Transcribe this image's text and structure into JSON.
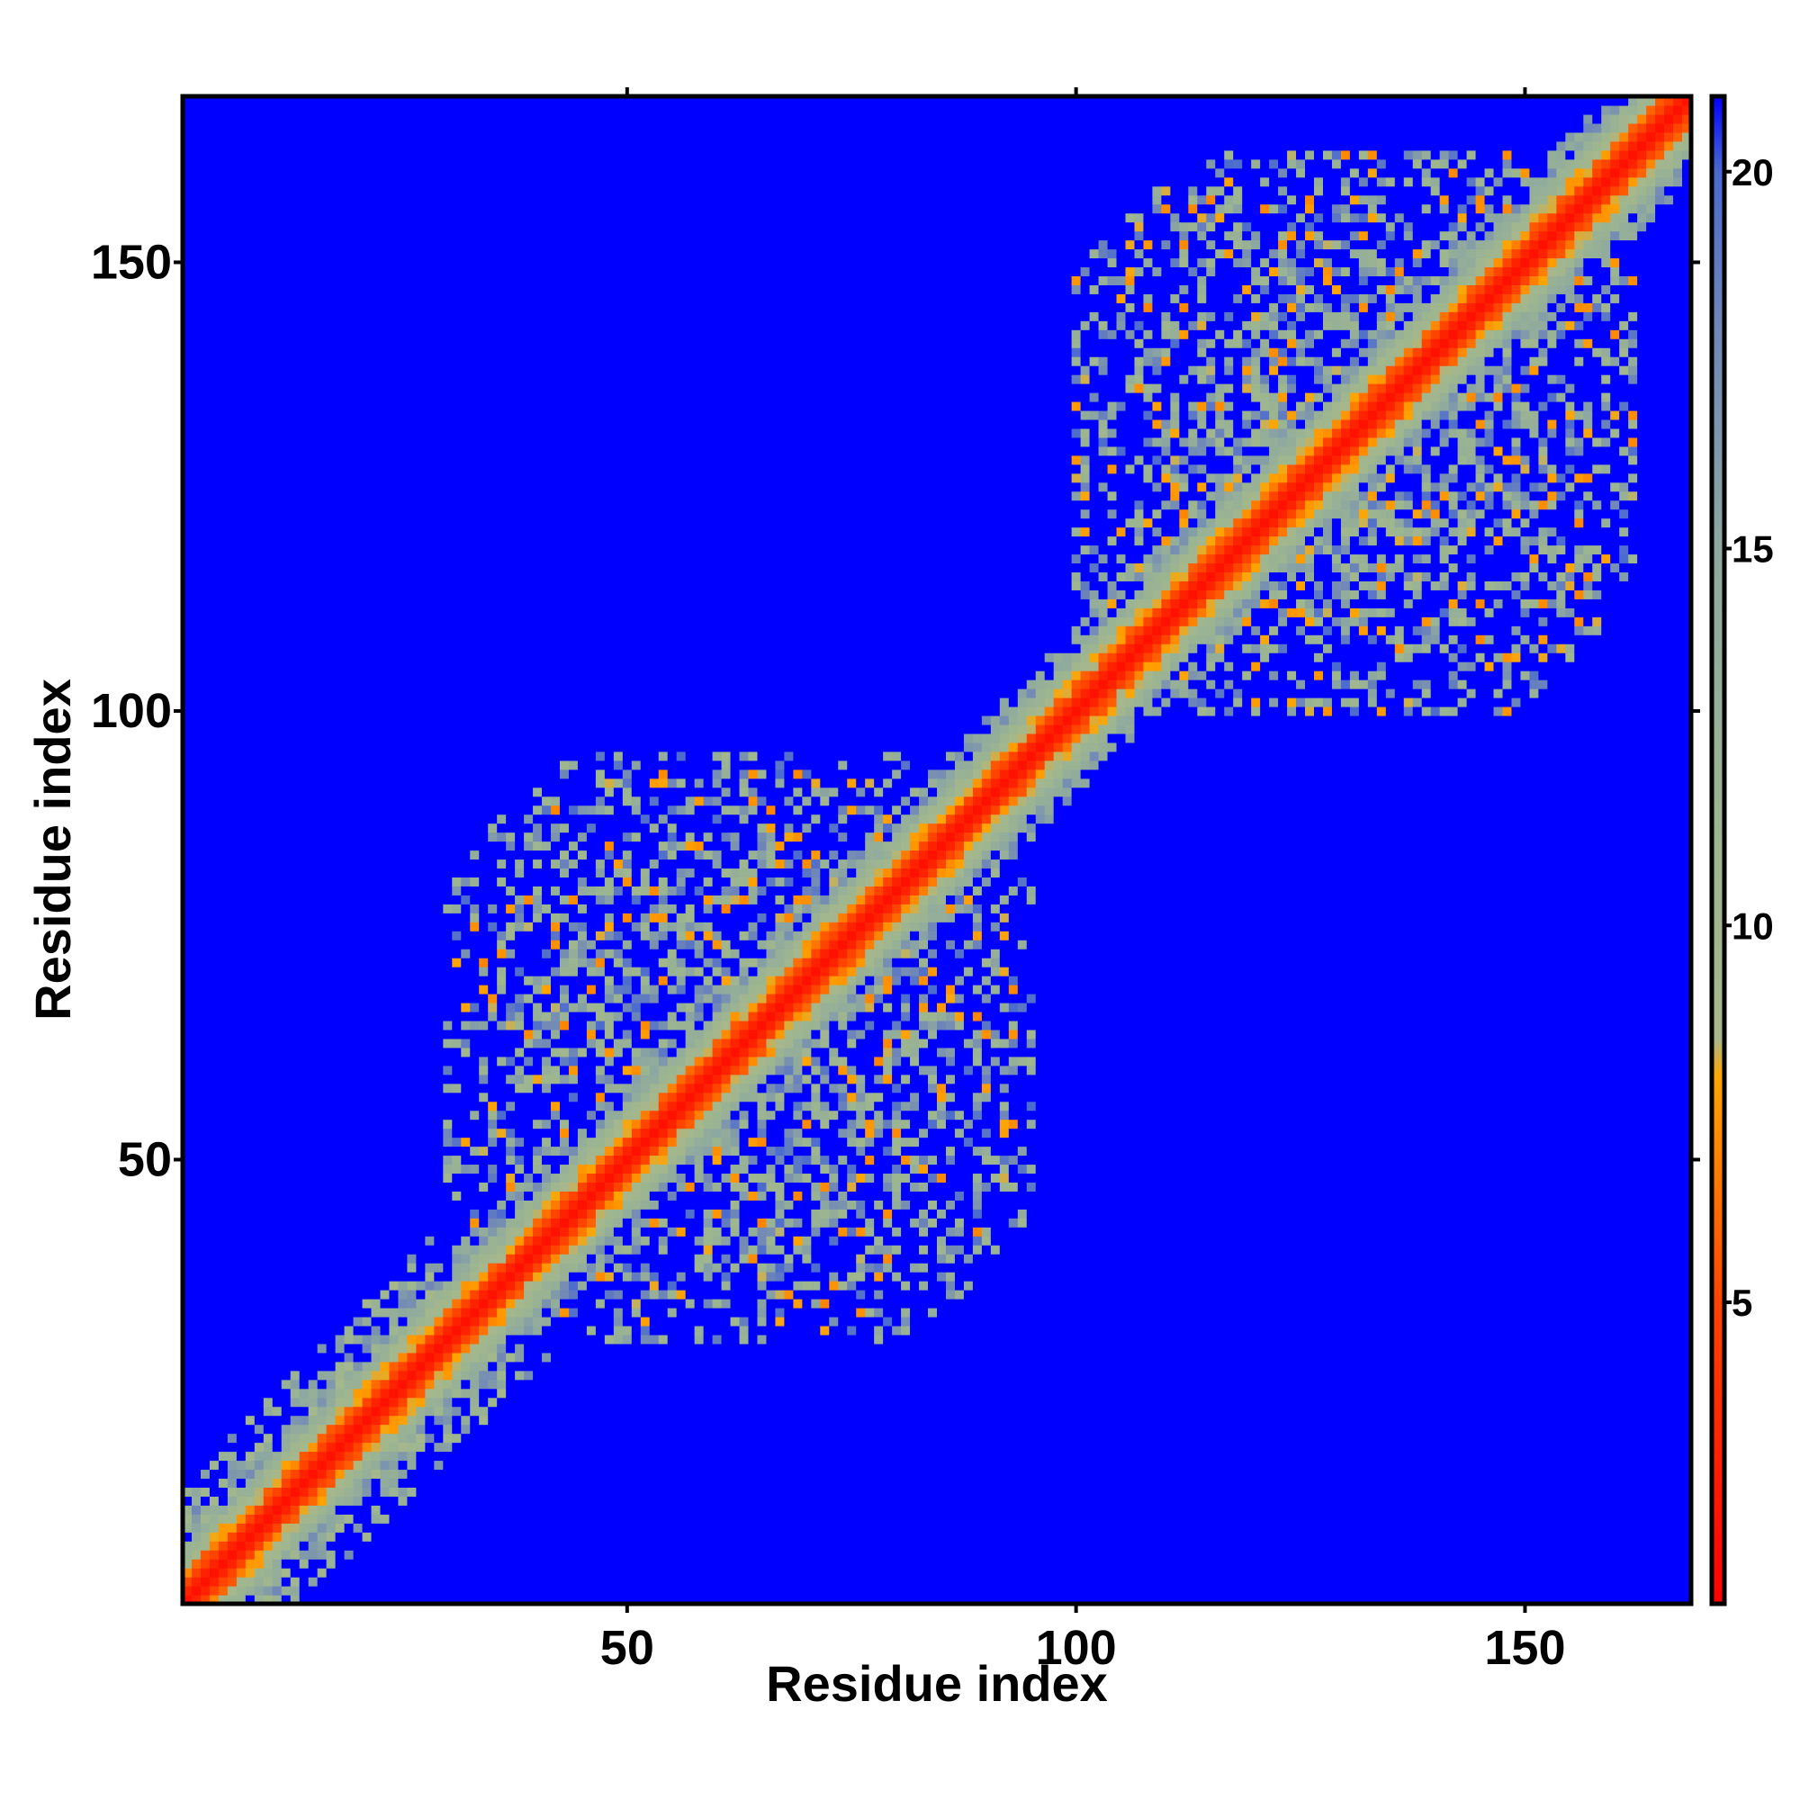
{
  "chart_data": {
    "type": "heatmap",
    "title": "",
    "xlabel": "Residue index",
    "ylabel": "Residue index",
    "n_residues": 168,
    "xlim": [
      1,
      168
    ],
    "ylim": [
      1,
      168
    ],
    "x_ticks": [
      50,
      100,
      150
    ],
    "y_ticks": [
      50,
      100,
      150
    ],
    "grid": false,
    "colorbar": {
      "min": 1,
      "max": 21,
      "ticks": [
        5,
        10,
        15,
        20
      ],
      "stops": [
        {
          "value": 1,
          "color": "#ff0000"
        },
        {
          "value": 5,
          "color": "#ff4400"
        },
        {
          "value": 8,
          "color": "#ffa500"
        },
        {
          "value": 8.5,
          "color": "#a8b78a"
        },
        {
          "value": 11,
          "color": "#9db690"
        },
        {
          "value": 15,
          "color": "#8ea8a0"
        },
        {
          "value": 18,
          "color": "#6f86b8"
        },
        {
          "value": 20,
          "color": "#4a6ad0"
        },
        {
          "value": 21,
          "color": "#0000ff"
        }
      ]
    },
    "background_value": 21,
    "structure": {
      "diagonal_band": [
        {
          "offset": 0,
          "value": 2
        },
        {
          "offset": 1,
          "value": 3
        },
        {
          "offset": 2,
          "value": 5
        },
        {
          "offset": 3,
          "value": 7
        },
        {
          "offset": 4,
          "value": 9
        },
        {
          "offset": 5,
          "value": 11
        },
        {
          "offset": 6,
          "value": 13
        }
      ],
      "domains": [
        {
          "residue_start": 30,
          "residue_end": 95,
          "contact_density": 0.55
        },
        {
          "residue_start": 100,
          "residue_end": 162,
          "contact_density": 0.55
        }
      ],
      "n_terminal_segment": {
        "residue_start": 1,
        "residue_end": 28
      }
    }
  }
}
